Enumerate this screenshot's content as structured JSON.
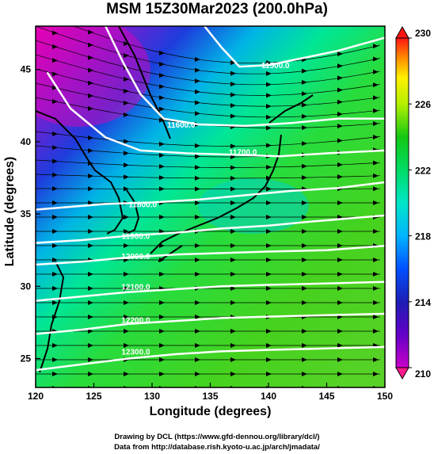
{
  "title": "MSM 15Z30Mar2023 (200.0hPa)",
  "xaxis": {
    "label": "Longitude (degrees)",
    "range": [
      120,
      150
    ],
    "ticks": [
      "120",
      "125",
      "130",
      "135",
      "140",
      "145",
      "150"
    ]
  },
  "yaxis": {
    "label": "Latitude  (degrees)",
    "range": [
      23,
      48
    ],
    "ticks": [
      "25",
      "30",
      "35",
      "40",
      "45"
    ]
  },
  "colorbar": {
    "range": [
      210,
      230
    ],
    "labels": [
      "230",
      "226",
      "222",
      "218",
      "214",
      "210"
    ],
    "colors": [
      "#ff1a8c",
      "#b400c8",
      "#1e1eb4",
      "#0050ff",
      "#00b4ff",
      "#00e6c8",
      "#00dc64",
      "#14c814",
      "#64dc14",
      "#b4f000",
      "#fff000",
      "#ffb400",
      "#ff6400",
      "#ff1414"
    ]
  },
  "map_data": {
    "field": "temperature (K) with wind streamlines and geopotential height contours",
    "contour_labels": [
      {
        "text": "11500.0",
        "lon": 140.6,
        "lat": 45.3
      },
      {
        "text": "11600.0",
        "lon": 132.5,
        "lat": 41.2
      },
      {
        "text": "11700.0",
        "lon": 137.8,
        "lat": 39.3
      },
      {
        "text": "11800.0",
        "lon": 129.2,
        "lat": 35.7
      },
      {
        "text": "11900.0",
        "lon": 128.6,
        "lat": 33.5
      },
      {
        "text": "12000.0",
        "lon": 128.6,
        "lat": 32.1
      },
      {
        "text": "12100.0",
        "lon": 128.6,
        "lat": 30.0
      },
      {
        "text": "12200.0",
        "lon": 128.6,
        "lat": 27.7
      },
      {
        "text": "12300.0",
        "lon": 128.6,
        "lat": 25.5
      }
    ],
    "contours": [
      {
        "label": "11500.0",
        "points": [
          [
            134.5,
            48
          ],
          [
            136,
            46.5
          ],
          [
            137.5,
            45.2
          ],
          [
            140,
            45.3
          ],
          [
            143,
            45.8
          ],
          [
            146,
            46.3
          ],
          [
            150,
            47.2
          ]
        ]
      },
      {
        "label": "11600.0",
        "points": [
          [
            126,
            48
          ],
          [
            127.5,
            45.5
          ],
          [
            129,
            43.3
          ],
          [
            131,
            41.6
          ],
          [
            134,
            41.2
          ],
          [
            138,
            41.1
          ],
          [
            142,
            41.3
          ],
          [
            146,
            41.6
          ],
          [
            150,
            41.6
          ]
        ]
      },
      {
        "label": "11700.0",
        "points": [
          [
            121,
            44.8
          ],
          [
            123,
            42.3
          ],
          [
            126,
            40.3
          ],
          [
            129,
            39.4
          ],
          [
            133,
            39.2
          ],
          [
            137,
            39.1
          ],
          [
            141,
            39.0
          ],
          [
            145,
            39.2
          ],
          [
            150,
            39.4
          ]
        ]
      },
      {
        "label": "11800.0",
        "points": [
          [
            120,
            35.3
          ],
          [
            123,
            35.5
          ],
          [
            126,
            35.7
          ],
          [
            130,
            35.8
          ],
          [
            134,
            36.0
          ],
          [
            138,
            36.3
          ],
          [
            142,
            36.6
          ],
          [
            146,
            36.8
          ],
          [
            150,
            37.2
          ]
        ]
      },
      {
        "label": "11900.0",
        "points": [
          [
            120,
            33.0
          ],
          [
            124,
            33.2
          ],
          [
            128,
            33.5
          ],
          [
            132,
            33.7
          ],
          [
            136,
            34.0
          ],
          [
            140,
            34.2
          ],
          [
            144,
            34.5
          ],
          [
            150,
            34.9
          ]
        ]
      },
      {
        "label": "12000.0",
        "points": [
          [
            120,
            31.5
          ],
          [
            124,
            31.7
          ],
          [
            128,
            32.0
          ],
          [
            132,
            32.2
          ],
          [
            136,
            32.3
          ],
          [
            140,
            32.4
          ],
          [
            145,
            32.5
          ],
          [
            150,
            32.8
          ]
        ]
      },
      {
        "label": "12100.0",
        "points": [
          [
            120,
            29.0
          ],
          [
            124,
            29.3
          ],
          [
            128,
            29.6
          ],
          [
            132,
            29.8
          ],
          [
            136,
            30.0
          ],
          [
            140,
            30.1
          ],
          [
            145,
            30.2
          ],
          [
            150,
            30.3
          ]
        ]
      },
      {
        "label": "12200.0",
        "points": [
          [
            120,
            26.7
          ],
          [
            124,
            27.0
          ],
          [
            128,
            27.4
          ],
          [
            132,
            27.6
          ],
          [
            136,
            27.8
          ],
          [
            140,
            27.9
          ],
          [
            145,
            28.0
          ],
          [
            150,
            28.1
          ]
        ]
      },
      {
        "label": "12300.0",
        "points": [
          [
            120,
            24.2
          ],
          [
            124,
            24.6
          ],
          [
            128,
            25.0
          ],
          [
            132,
            25.3
          ],
          [
            136,
            25.5
          ],
          [
            140,
            25.6
          ],
          [
            145,
            25.7
          ],
          [
            150,
            25.8
          ]
        ]
      }
    ]
  },
  "footer": {
    "line1": "Drawing by DCL (https://www.gfd-dennou.org/library/dcl/)",
    "line2": "Data from http://database.rish.kyoto-u.ac.jp/arch/jmadata/"
  }
}
